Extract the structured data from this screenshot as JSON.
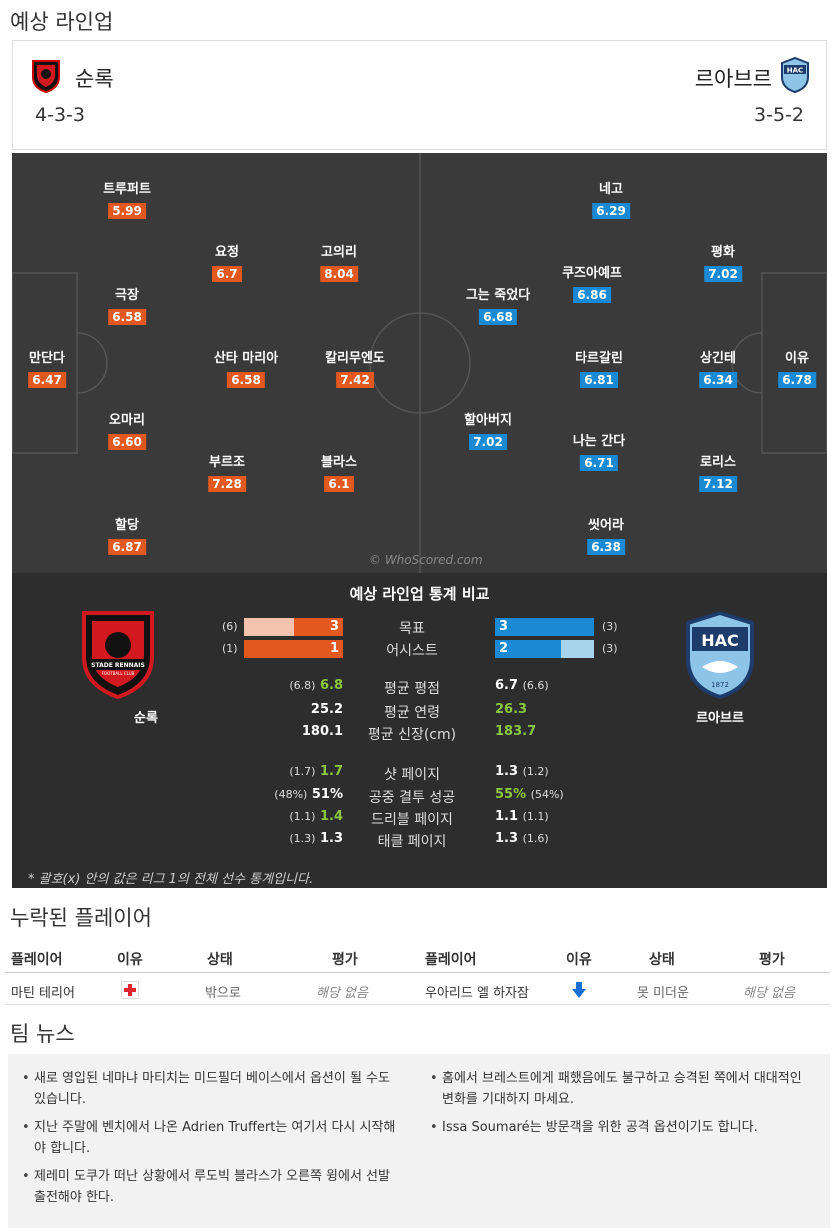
{
  "titles": {
    "predicted_lineup": "예상 라인업",
    "missing_players": "누락된 플레이어",
    "team_news": "팀 뉴스"
  },
  "home": {
    "name": "순록",
    "formation": "4-3-3",
    "color": "#e2581e",
    "players": [
      {
        "name": "트루퍼트",
        "rating": "5.99"
      },
      {
        "name": "극장",
        "rating": "6.58"
      },
      {
        "name": "만단다",
        "rating": "6.47"
      },
      {
        "name": "오마리",
        "rating": "6.60"
      },
      {
        "name": "할당",
        "rating": "6.87"
      },
      {
        "name": "요정",
        "rating": "6.7"
      },
      {
        "name": "산타 마리아",
        "rating": "6.58"
      },
      {
        "name": "부르조",
        "rating": "7.28"
      },
      {
        "name": "고의리",
        "rating": "8.04"
      },
      {
        "name": "칼리무엔도",
        "rating": "7.42"
      },
      {
        "name": "블라스",
        "rating": "6.1"
      }
    ]
  },
  "away": {
    "name": "르아브르",
    "formation": "3-5-2",
    "crest_text": "HAC",
    "crest_year": "1872",
    "color": "#1a8ad4",
    "players": [
      {
        "name": "네고",
        "rating": "6.29"
      },
      {
        "name": "쿠즈아예프",
        "rating": "6.86"
      },
      {
        "name": "그는 죽었다",
        "rating": "6.68"
      },
      {
        "name": "타르갈린",
        "rating": "6.81"
      },
      {
        "name": "할아버지",
        "rating": "7.02"
      },
      {
        "name": "나는 간다",
        "rating": "6.71"
      },
      {
        "name": "씻어라",
        "rating": "6.38"
      },
      {
        "name": "평화",
        "rating": "7.02"
      },
      {
        "name": "상긴테",
        "rating": "6.34"
      },
      {
        "name": "로리스",
        "rating": "7.12"
      },
      {
        "name": "이유",
        "rating": "6.78"
      }
    ]
  },
  "watermark": "© WhoScored.com",
  "stats": {
    "title": "예상 라인업 통계 비교",
    "home_crest_text": "STADE RENNAIS",
    "home_crest_sub": "FOOTBALL CLUB",
    "bars": [
      {
        "label": "목표",
        "home": "3",
        "home_league": "(6)",
        "home_fraction": 0.5,
        "away": "3",
        "away_league": "(3)",
        "away_fraction": 1.0
      },
      {
        "label": "어시스트",
        "home": "1",
        "home_league": "(1)",
        "home_fraction": 1.0,
        "away": "2",
        "away_league": "(3)",
        "away_fraction": 0.67
      }
    ],
    "rows": [
      {
        "label": "평균 평점",
        "home": "6.8",
        "home_league": "(6.8)",
        "home_green": true,
        "away": "6.7",
        "away_league": "(6.6)",
        "away_green": false
      },
      {
        "label": "평균 연령",
        "home": "25.2",
        "home_league": "",
        "home_green": false,
        "away": "26.3",
        "away_league": "",
        "away_green": true
      },
      {
        "label": "평균 신장(cm)",
        "home": "180.1",
        "home_league": "",
        "home_green": false,
        "away": "183.7",
        "away_league": "",
        "away_green": true
      },
      {
        "label": "샷 페이지",
        "home": "1.7",
        "home_league": "(1.7)",
        "home_green": true,
        "away": "1.3",
        "away_league": "(1.2)",
        "away_green": false
      },
      {
        "label": "공중 결투 성공",
        "home": "51%",
        "home_league": "(48%)",
        "home_green": false,
        "away": "55%",
        "away_league": "(54%)",
        "away_green": true
      },
      {
        "label": "드리블 페이지",
        "home": "1.4",
        "home_league": "(1.1)",
        "home_green": true,
        "away": "1.1",
        "away_league": "(1.1)",
        "away_green": false
      },
      {
        "label": "태클 페이지",
        "home": "1.3",
        "home_league": "(1.3)",
        "home_green": false,
        "away": "1.3",
        "away_league": "(1.6)",
        "away_green": false
      }
    ],
    "footnote": "* 괄호(x) 안의 값은 리그 1의 전체 선수 통계입니다."
  },
  "missing": {
    "headers": [
      "플레이어",
      "이유",
      "상태",
      "평가",
      "플레이어",
      "이유",
      "상태",
      "평가"
    ],
    "row": {
      "home_player": "마틴 테리어",
      "home_reason_icon": "injury-cross-icon",
      "home_status": "밖으로",
      "home_rating": "해당 없음",
      "away_player": "우아리드 엘 하자잠",
      "away_reason_icon": "arrow-down-icon",
      "away_status": "못 미더운",
      "away_rating": "해당 없음"
    }
  },
  "news": {
    "left": [
      "새로 영입된 네마냐 마티치는 미드필더 베이스에서 옵션이 될 수도 있습니다.",
      "지난 주말에 벤치에서 나온 Adrien Truffert는 여기서 다시 시작해야 합니다.",
      "제레미 도쿠가 떠난 상황에서 루도빅 블라스가 오른쪽 윙에서 선발 출전해야 한다."
    ],
    "right": [
      "홈에서 브레스트에게 패했음에도 불구하고 승격된 쪽에서 대대적인 변화를 기대하지 마세요.",
      "Issa Soumaré는 방문객을 위한 공격 옵션이기도 합니다."
    ]
  }
}
